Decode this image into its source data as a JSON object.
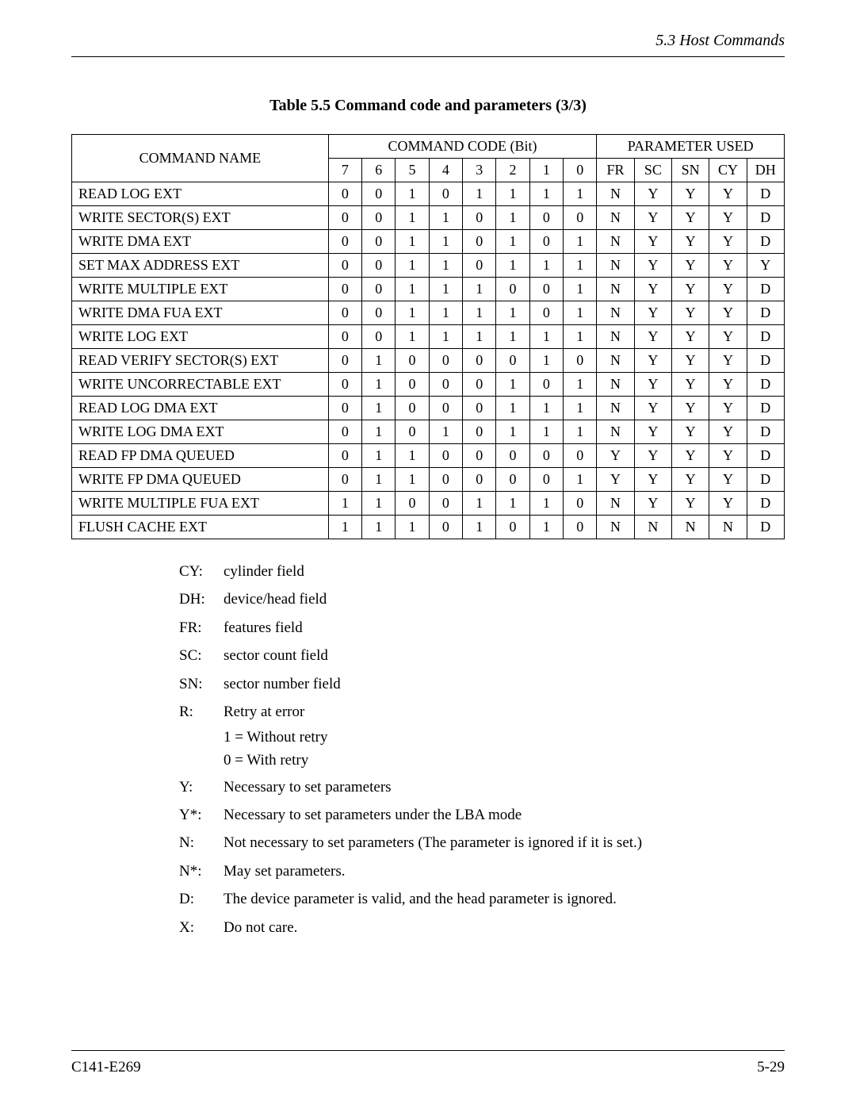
{
  "header": {
    "section": "5.3  Host Commands"
  },
  "table": {
    "caption": "Table 5.5  Command code and parameters (3/3)",
    "headers": {
      "name": "COMMAND NAME",
      "code_group": "COMMAND CODE (Bit)",
      "param_group": "PARAMETER USED",
      "bits": [
        "7",
        "6",
        "5",
        "4",
        "3",
        "2",
        "1",
        "0"
      ],
      "params": [
        "FR",
        "SC",
        "SN",
        "CY",
        "DH"
      ]
    },
    "rows": [
      {
        "name": "READ LOG EXT",
        "bits": [
          "0",
          "0",
          "1",
          "0",
          "1",
          "1",
          "1",
          "1"
        ],
        "params": [
          "N",
          "Y",
          "Y",
          "Y",
          "D"
        ]
      },
      {
        "name": "WRITE SECTOR(S) EXT",
        "bits": [
          "0",
          "0",
          "1",
          "1",
          "0",
          "1",
          "0",
          "0"
        ],
        "params": [
          "N",
          "Y",
          "Y",
          "Y",
          "D"
        ]
      },
      {
        "name": "WRITE DMA EXT",
        "bits": [
          "0",
          "0",
          "1",
          "1",
          "0",
          "1",
          "0",
          "1"
        ],
        "params": [
          "N",
          "Y",
          "Y",
          "Y",
          "D"
        ]
      },
      {
        "name": "SET MAX ADDRESS EXT",
        "bits": [
          "0",
          "0",
          "1",
          "1",
          "0",
          "1",
          "1",
          "1"
        ],
        "params": [
          "N",
          "Y",
          "Y",
          "Y",
          "Y"
        ]
      },
      {
        "name": "WRITE MULTIPLE EXT",
        "bits": [
          "0",
          "0",
          "1",
          "1",
          "1",
          "0",
          "0",
          "1"
        ],
        "params": [
          "N",
          "Y",
          "Y",
          "Y",
          "D"
        ]
      },
      {
        "name": "WRITE DMA FUA EXT",
        "bits": [
          "0",
          "0",
          "1",
          "1",
          "1",
          "1",
          "0",
          "1"
        ],
        "params": [
          "N",
          "Y",
          "Y",
          "Y",
          "D"
        ]
      },
      {
        "name": "WRITE LOG EXT",
        "bits": [
          "0",
          "0",
          "1",
          "1",
          "1",
          "1",
          "1",
          "1"
        ],
        "params": [
          "N",
          "Y",
          "Y",
          "Y",
          "D"
        ]
      },
      {
        "name": "READ VERIFY SECTOR(S) EXT",
        "bits": [
          "0",
          "1",
          "0",
          "0",
          "0",
          "0",
          "1",
          "0"
        ],
        "params": [
          "N",
          "Y",
          "Y",
          "Y",
          "D"
        ]
      },
      {
        "name": "WRITE UNCORRECTABLE EXT",
        "bits": [
          "0",
          "1",
          "0",
          "0",
          "0",
          "1",
          "0",
          "1"
        ],
        "params": [
          "N",
          "Y",
          "Y",
          "Y",
          "D"
        ]
      },
      {
        "name": "READ LOG DMA EXT",
        "bits": [
          "0",
          "1",
          "0",
          "0",
          "0",
          "1",
          "1",
          "1"
        ],
        "params": [
          "N",
          "Y",
          "Y",
          "Y",
          "D"
        ]
      },
      {
        "name": "WRITE LOG DMA EXT",
        "bits": [
          "0",
          "1",
          "0",
          "1",
          "0",
          "1",
          "1",
          "1"
        ],
        "params": [
          "N",
          "Y",
          "Y",
          "Y",
          "D"
        ]
      },
      {
        "name": "READ FP DMA QUEUED",
        "bits": [
          "0",
          "1",
          "1",
          "0",
          "0",
          "0",
          "0",
          "0"
        ],
        "params": [
          "Y",
          "Y",
          "Y",
          "Y",
          "D"
        ]
      },
      {
        "name": "WRITE FP DMA QUEUED",
        "bits": [
          "0",
          "1",
          "1",
          "0",
          "0",
          "0",
          "0",
          "1"
        ],
        "params": [
          "Y",
          "Y",
          "Y",
          "Y",
          "D"
        ]
      },
      {
        "name": "WRITE MULTIPLE FUA EXT",
        "bits": [
          "1",
          "1",
          "0",
          "0",
          "1",
          "1",
          "1",
          "0"
        ],
        "params": [
          "N",
          "Y",
          "Y",
          "Y",
          "D"
        ]
      },
      {
        "name": "FLUSH CACHE EXT",
        "bits": [
          "1",
          "1",
          "1",
          "0",
          "1",
          "0",
          "1",
          "0"
        ],
        "params": [
          "N",
          "N",
          "N",
          "N",
          "D"
        ]
      }
    ]
  },
  "legend": [
    {
      "key": "CY:",
      "val": "cylinder field"
    },
    {
      "key": "DH:",
      "val": "device/head field"
    },
    {
      "key": "FR:",
      "val": "features field"
    },
    {
      "key": "SC:",
      "val": "sector count field"
    },
    {
      "key": "SN:",
      "val": "sector number field"
    },
    {
      "key": "R:",
      "val": "Retry at error",
      "sub": [
        "1 = Without retry",
        "0 = With retry"
      ]
    },
    {
      "key": "Y:",
      "val": "Necessary to set parameters"
    },
    {
      "key": "Y*:",
      "val": "Necessary to set parameters under the LBA mode"
    },
    {
      "key": "N:",
      "val": "Not necessary to set parameters (The parameter is ignored if it is set.)"
    },
    {
      "key": "N*:",
      "val": "May set parameters."
    },
    {
      "key": "D:",
      "val": "The device parameter is valid, and the head parameter is ignored."
    },
    {
      "key": "X:",
      "val": "Do not care."
    }
  ],
  "footer": {
    "left": "C141-E269",
    "right": "5-29"
  }
}
